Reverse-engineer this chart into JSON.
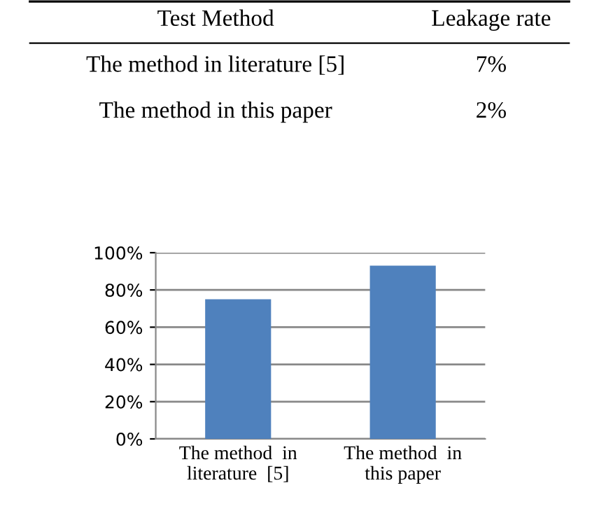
{
  "chart_data": [
    {
      "type": "other",
      "annotations": [
        "Test Method",
        "Leakage rate",
        "The method in literature [5]",
        "7%",
        "The method in this paper",
        "2%"
      ]
    },
    {
      "type": "bar",
      "categories": [
        "The method  in\nliterature  [5]",
        "The method  in\nthis paper"
      ],
      "values": [
        75,
        93
      ],
      "color": "#4f81bd",
      "ylim": [
        0,
        100
      ],
      "yticks": [
        {
          "value": 0,
          "label": "0%"
        },
        {
          "value": 20,
          "label": "20%"
        },
        {
          "value": 40,
          "label": "40%"
        },
        {
          "value": 60,
          "label": "60%"
        },
        {
          "value": 80,
          "label": "80%"
        },
        {
          "value": 100,
          "label": "100%"
        }
      ],
      "grid": "y"
    }
  ]
}
